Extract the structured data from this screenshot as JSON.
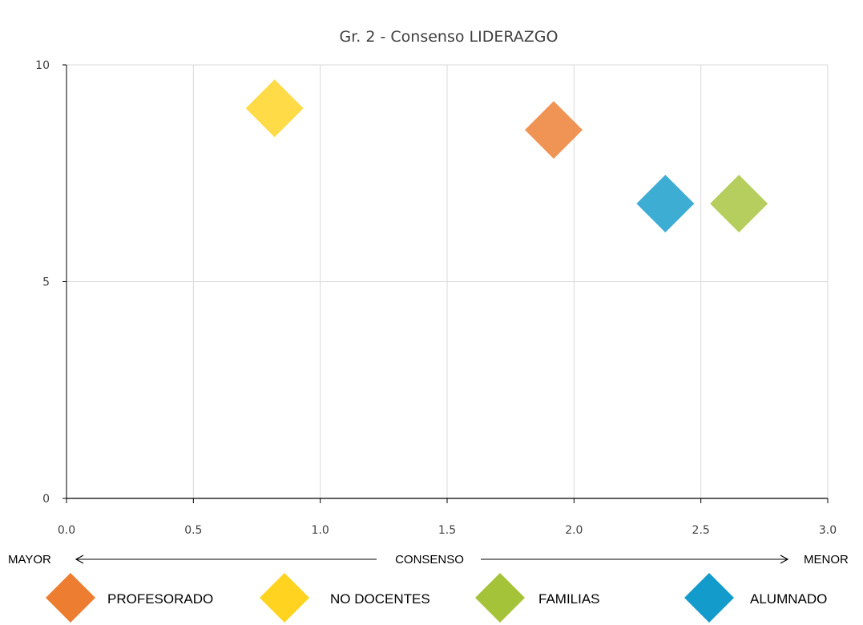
{
  "chart_data": {
    "type": "scatter",
    "title": "Gr. 2 - Consenso LIDERAZGO",
    "xlim": [
      0,
      3
    ],
    "ylim": [
      0,
      10
    ],
    "x_ticks": [
      "0.0",
      "0.5",
      "1.0",
      "1.5",
      "2.0",
      "2.5",
      "3.0"
    ],
    "y_ticks": [
      "0",
      "5",
      "10"
    ],
    "grid": true,
    "marker": "diamond",
    "axis_caption": {
      "left": "MAYOR",
      "center": "CONSENSO",
      "right": "MENOR"
    },
    "legend_placement": "bottom",
    "series": [
      {
        "name": "PROFESORADO",
        "color": "#ED7D31",
        "x": 1.92,
        "y": 8.5
      },
      {
        "name": "NO DOCENTES",
        "color": "#FFD320",
        "x": 0.82,
        "y": 9.0
      },
      {
        "name": "FAMILIAS",
        "color": "#A5C339",
        "x": 2.65,
        "y": 6.8
      },
      {
        "name": "ALUMNADO",
        "color": "#129BCB",
        "x": 2.36,
        "y": 6.8
      }
    ]
  }
}
